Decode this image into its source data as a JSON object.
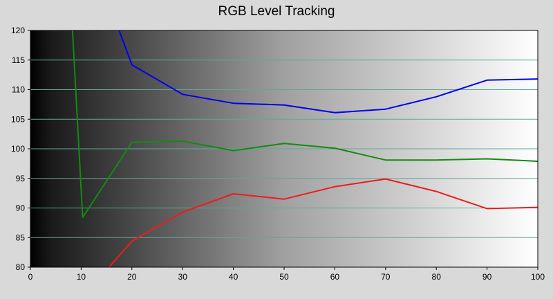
{
  "chart_data": {
    "type": "line",
    "title": "RGB Level Tracking",
    "xlabel": "",
    "ylabel": "",
    "xlim": [
      0,
      100
    ],
    "ylim": [
      80,
      120
    ],
    "xticks": [
      "0",
      "10",
      "20",
      "30",
      "40",
      "50",
      "60",
      "70",
      "80",
      "90",
      "100"
    ],
    "yticks": [
      "80",
      "85",
      "90",
      "95",
      "100",
      "105",
      "110",
      "115",
      "120"
    ],
    "grid": true,
    "background": "black-to-white gradient",
    "series": [
      {
        "color": "#0000ee",
        "points": [
          [
            17.5,
            120
          ],
          [
            20,
            114.2
          ],
          [
            30,
            109.2
          ],
          [
            40,
            107.7
          ],
          [
            50,
            107.4
          ],
          [
            60,
            106.1
          ],
          [
            70,
            106.7
          ],
          [
            80,
            108.8
          ],
          [
            90,
            111.6
          ],
          [
            100,
            111.8
          ]
        ]
      },
      {
        "color": "#138a13",
        "points": [
          [
            8.3,
            120
          ],
          [
            10.3,
            88.4
          ],
          [
            20,
            101.1
          ],
          [
            30,
            101.3
          ],
          [
            40,
            99.7
          ],
          [
            50,
            100.9
          ],
          [
            60,
            100.1
          ],
          [
            70,
            98.1
          ],
          [
            80,
            98.1
          ],
          [
            90,
            98.3
          ],
          [
            100,
            97.9
          ]
        ]
      },
      {
        "color": "#ee1c1c",
        "points": [
          [
            15.5,
            80
          ],
          [
            20,
            84.4
          ],
          [
            30,
            89.3
          ],
          [
            40,
            92.4
          ],
          [
            50,
            91.5
          ],
          [
            60,
            93.6
          ],
          [
            70,
            94.9
          ],
          [
            80,
            92.8
          ],
          [
            90,
            89.9
          ],
          [
            100,
            90.1
          ]
        ]
      }
    ]
  }
}
